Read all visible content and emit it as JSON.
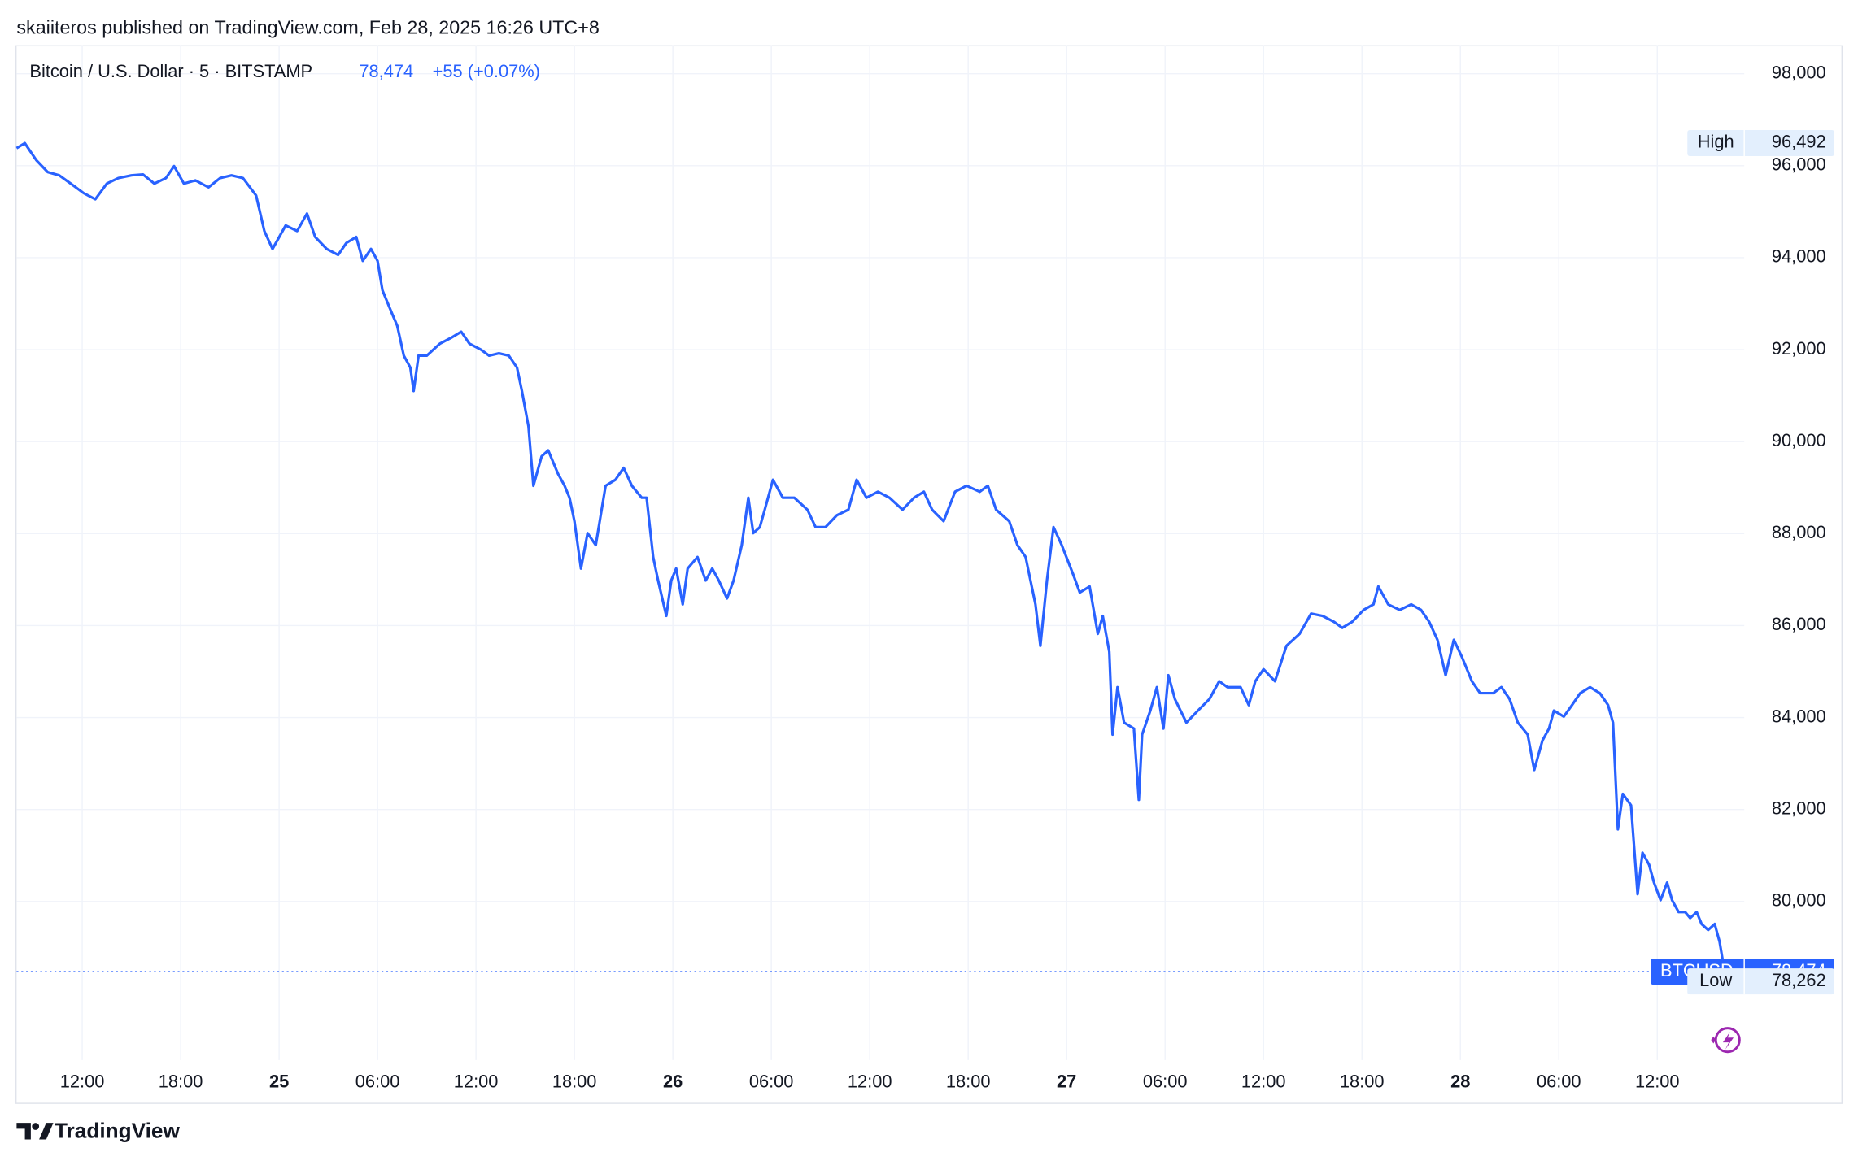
{
  "header": {
    "published": "skaiiteros published on TradingView.com, Feb 28, 2025 16:26 UTC+8"
  },
  "chart_data": {
    "type": "line",
    "legend": {
      "symbol": "Bitcoin / U.S. Dollar · 5 · BITSTAMP",
      "price": "78,474",
      "change": "+55 (+0.07%)"
    },
    "xlim": [
      8,
      113.3
    ],
    "xticks": [
      {
        "value": 12,
        "label": "12:00"
      },
      {
        "value": 18,
        "label": "18:00"
      },
      {
        "value": 24,
        "label": "25"
      },
      {
        "value": 30,
        "label": "06:00"
      },
      {
        "value": 36,
        "label": "12:00"
      },
      {
        "value": 42,
        "label": "18:00"
      },
      {
        "value": 48,
        "label": "26"
      },
      {
        "value": 54,
        "label": "06:00"
      },
      {
        "value": 60,
        "label": "12:00"
      },
      {
        "value": 66,
        "label": "18:00"
      },
      {
        "value": 72,
        "label": "27"
      },
      {
        "value": 78,
        "label": "06:00"
      },
      {
        "value": 84,
        "label": "12:00"
      },
      {
        "value": 90,
        "label": "18:00"
      },
      {
        "value": 96,
        "label": "28"
      },
      {
        "value": 102,
        "label": "06:00"
      },
      {
        "value": 108,
        "label": "12:00"
      }
    ],
    "ylim": [
      76550,
      98620
    ],
    "yticks": [
      {
        "value": 80000,
        "label": "80,000"
      },
      {
        "value": 82000,
        "label": "82,000"
      },
      {
        "value": 84000,
        "label": "84,000"
      },
      {
        "value": 86000,
        "label": "86,000"
      },
      {
        "value": 88000,
        "label": "88,000"
      },
      {
        "value": 90000,
        "label": "90,000"
      },
      {
        "value": 92000,
        "label": "92,000"
      },
      {
        "value": 94000,
        "label": "94,000"
      },
      {
        "value": 96000,
        "label": "96,000"
      },
      {
        "value": 98000,
        "label": "98,000"
      }
    ],
    "grid": true,
    "series": [
      {
        "name": "BTCUSD",
        "color": "#2962ff",
        "x": [
          8.0,
          8.5,
          9.2,
          9.9,
          10.6,
          11.3,
          12.1,
          12.8,
          13.5,
          14.2,
          15.0,
          15.7,
          16.4,
          17.1,
          17.6,
          18.2,
          18.9,
          19.7,
          20.4,
          21.1,
          21.8,
          22.6,
          23.1,
          23.6,
          24.4,
          25.1,
          25.7,
          26.2,
          26.9,
          27.6,
          28.1,
          28.7,
          29.1,
          29.6,
          30.0,
          30.3,
          30.9,
          31.2,
          31.6,
          32.0,
          32.2,
          32.5,
          33.0,
          33.8,
          34.5,
          35.1,
          35.6,
          36.3,
          36.8,
          37.4,
          38.0,
          38.5,
          38.8,
          39.2,
          39.5,
          40.0,
          40.4,
          41.0,
          41.4,
          41.7,
          42.0,
          42.4,
          42.8,
          43.3,
          43.9,
          44.5,
          45.0,
          45.5,
          46.1,
          46.4,
          46.8,
          47.1,
          47.6,
          47.9,
          48.2,
          48.6,
          48.9,
          49.5,
          50.0,
          50.4,
          50.8,
          51.3,
          51.7,
          52.2,
          52.6,
          52.9,
          53.3,
          53.6,
          54.1,
          54.7,
          55.4,
          56.2,
          56.7,
          57.3,
          58.0,
          58.7,
          59.2,
          59.8,
          60.5,
          61.2,
          62.0,
          62.7,
          63.3,
          63.8,
          64.5,
          65.2,
          65.9,
          66.7,
          67.2,
          67.7,
          68.5,
          69.0,
          69.5,
          70.1,
          70.4,
          70.8,
          71.2,
          71.7,
          72.4,
          72.8,
          73.4,
          73.9,
          74.2,
          74.6,
          74.8,
          75.1,
          75.5,
          76.1,
          76.4,
          76.6,
          77.1,
          77.5,
          77.9,
          78.2,
          78.6,
          79.3,
          80.0,
          80.7,
          81.3,
          81.8,
          82.6,
          83.1,
          83.5,
          84.0,
          84.7,
          85.4,
          86.2,
          86.9,
          87.6,
          88.3,
          88.8,
          89.4,
          90.1,
          90.7,
          91.0,
          91.6,
          92.3,
          93.0,
          93.6,
          94.1,
          94.6,
          95.1,
          95.6,
          96.1,
          96.7,
          97.2,
          98.0,
          98.5,
          99.0,
          99.5,
          100.1,
          100.5,
          101.0,
          101.4,
          101.7,
          102.3,
          102.8,
          103.3,
          103.9,
          104.5,
          105.0,
          105.3,
          105.6,
          105.9,
          106.4,
          106.8,
          107.1,
          107.5,
          107.8,
          108.2,
          108.6,
          108.9,
          109.3,
          109.7,
          110.0,
          110.4,
          110.7,
          111.1,
          111.5,
          111.8,
          112.2,
          112.3
        ],
        "values": [
          96380,
          96490,
          96120,
          95860,
          95790,
          95610,
          95400,
          95270,
          95610,
          95730,
          95790,
          95810,
          95610,
          95730,
          95990,
          95610,
          95680,
          95530,
          95730,
          95790,
          95730,
          95350,
          94580,
          94190,
          94700,
          94580,
          94960,
          94450,
          94190,
          94060,
          94320,
          94450,
          93930,
          94190,
          93930,
          93290,
          92770,
          92520,
          91870,
          91610,
          91100,
          91870,
          91870,
          92130,
          92260,
          92390,
          92130,
          92000,
          91870,
          91920,
          91870,
          91610,
          91100,
          90330,
          89040,
          89680,
          89810,
          89300,
          89040,
          88780,
          88270,
          87240,
          88010,
          87750,
          89040,
          89170,
          89430,
          89040,
          88780,
          88780,
          87490,
          86980,
          86210,
          86980,
          87240,
          86460,
          87240,
          87490,
          86980,
          87240,
          86980,
          86590,
          86980,
          87750,
          88780,
          88010,
          88140,
          88520,
          89170,
          88780,
          88780,
          88520,
          88140,
          88140,
          88400,
          88520,
          89170,
          88780,
          88910,
          88780,
          88520,
          88780,
          88910,
          88520,
          88270,
          88910,
          89040,
          88910,
          89040,
          88520,
          88270,
          87750,
          87490,
          86460,
          85560,
          86980,
          88140,
          87750,
          87110,
          86720,
          86850,
          85820,
          86210,
          85430,
          83630,
          84660,
          83890,
          83760,
          82210,
          83630,
          84150,
          84660,
          83760,
          84920,
          84400,
          83890,
          84150,
          84400,
          84790,
          84660,
          84660,
          84270,
          84790,
          85050,
          84790,
          85560,
          85820,
          86260,
          86210,
          86080,
          85950,
          86080,
          86340,
          86460,
          86850,
          86460,
          86340,
          86460,
          86340,
          86080,
          85690,
          84920,
          85690,
          85310,
          84790,
          84530,
          84530,
          84660,
          84400,
          83890,
          83630,
          82860,
          83500,
          83760,
          84150,
          84020,
          84270,
          84530,
          84660,
          84530,
          84270,
          83890,
          81570,
          82340,
          82090,
          80160,
          81060,
          80800,
          80410,
          80030,
          80410,
          80030,
          79770,
          79770,
          79640,
          79770,
          79510,
          79380,
          79510,
          79120,
          78262,
          78474
        ]
      }
    ],
    "price_labels": [
      {
        "name": "High",
        "value": 96492,
        "label": "96,492"
      },
      {
        "name": "Low",
        "value": 78262,
        "label": "78,262"
      }
    ],
    "last_price": {
      "value": 78474,
      "label": "78,474"
    }
  },
  "footer": {
    "brand": "TradingView"
  }
}
